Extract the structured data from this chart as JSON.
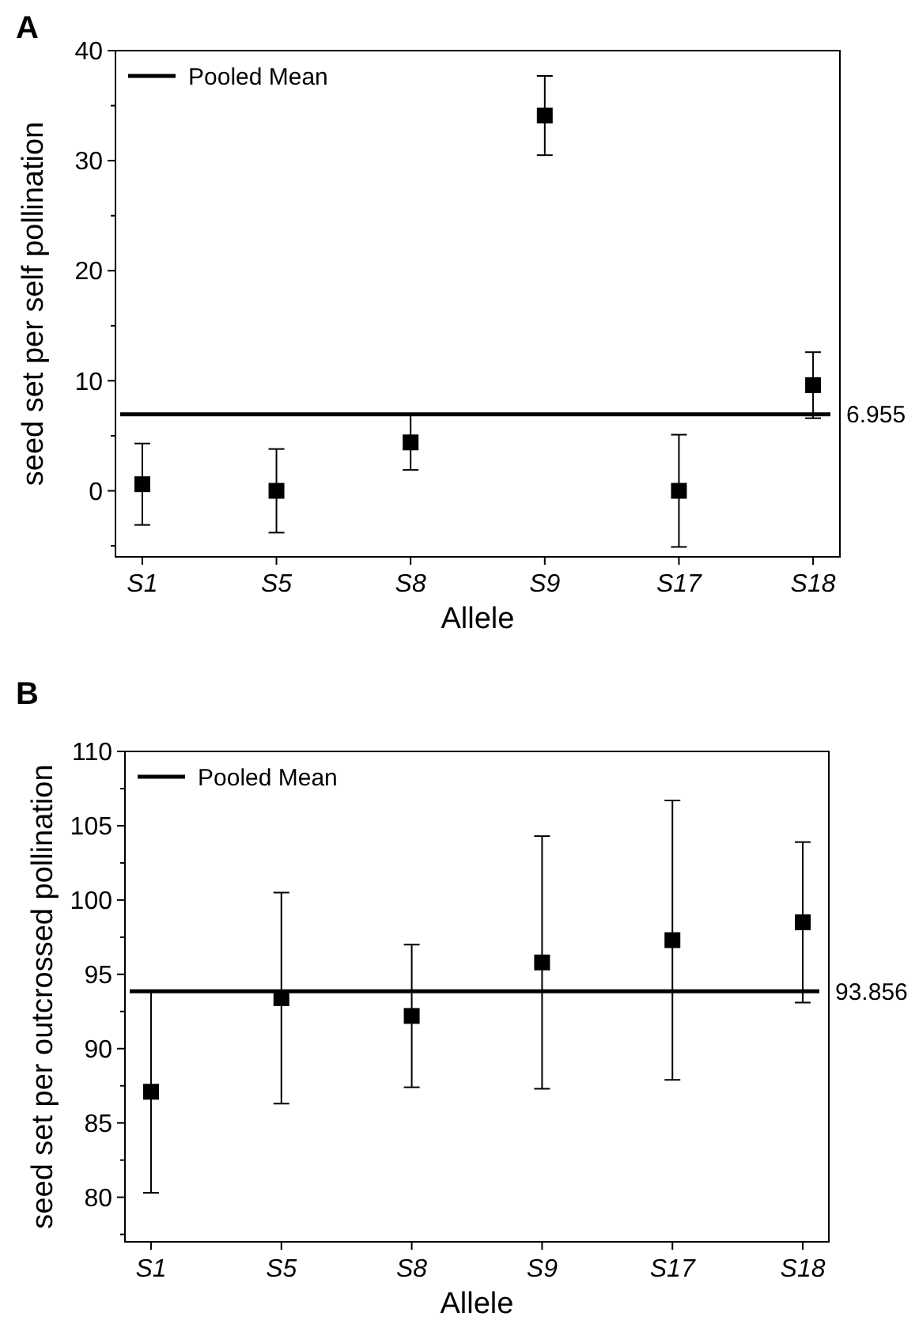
{
  "chart_data": [
    {
      "type": "scatter",
      "title": "A",
      "xlabel": "Allele",
      "ylabel": "seed set per self pollination",
      "categories": [
        "S1",
        "S5",
        "S8",
        "S9",
        "S17",
        "S18"
      ],
      "series": [
        {
          "color": "#000000",
          "values": [
            0.6,
            0,
            4.4,
            34.1,
            0,
            9.6
          ],
          "errors": [
            3.7,
            3.8,
            2.5,
            3.6,
            5.1,
            3.0
          ]
        }
      ],
      "marker": "square",
      "ylim": [
        -6,
        40
      ],
      "yticks": [
        {
          "value": -5,
          "label": null
        },
        0,
        {
          "value": 5,
          "label": null
        },
        10,
        {
          "value": 15,
          "label": null
        },
        20,
        {
          "value": 25,
          "label": null
        },
        30,
        {
          "value": 35,
          "label": null
        },
        40
      ],
      "ref_lines": [
        {
          "axis": "y",
          "value": 6.955,
          "label": "Pooled Mean",
          "color": "#000000"
        }
      ],
      "annotations": [
        "6.955"
      ],
      "legend": "top left",
      "grid": false
    },
    {
      "type": "scatter",
      "title": "B",
      "xlabel": "Allele",
      "ylabel": "seed set per outcrossed pollination",
      "categories": [
        "S1",
        "S5",
        "S8",
        "S9",
        "S17",
        "S18"
      ],
      "series": [
        {
          "color": "#000000",
          "values": [
            87.1,
            93.4,
            92.2,
            95.8,
            97.3,
            98.5
          ],
          "errors": [
            6.8,
            7.1,
            4.8,
            8.5,
            9.4,
            5.4
          ]
        }
      ],
      "marker": "square",
      "ylim": [
        77,
        110
      ],
      "yticks": [
        {
          "value": 77.5,
          "label": null
        },
        80,
        {
          "value": 82.5,
          "label": null
        },
        85,
        {
          "value": 87.5,
          "label": null
        },
        90,
        {
          "value": 92.5,
          "label": null
        },
        95,
        {
          "value": 97.5,
          "label": null
        },
        100,
        {
          "value": 102.5,
          "label": null
        },
        105,
        {
          "value": 107.5,
          "label": null
        },
        110
      ],
      "ref_lines": [
        {
          "axis": "y",
          "value": 93.856,
          "label": "Pooled Mean",
          "color": "#000000"
        }
      ],
      "annotations": [
        "93.856"
      ],
      "legend": "top left",
      "grid": false
    }
  ]
}
